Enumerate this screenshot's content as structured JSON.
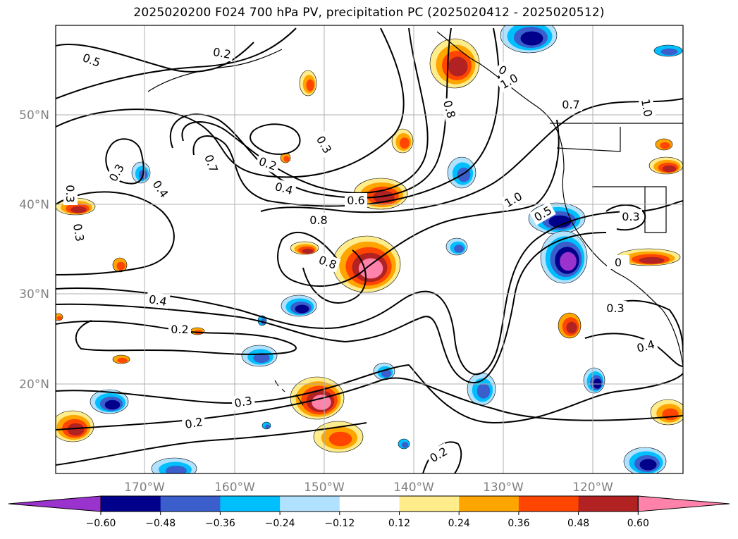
{
  "title": "2025020200 F024 700 hPa PV, precipitation PC (2025020412 - 2025020512)",
  "longitude_labels": [
    "170°W",
    "160°W",
    "150°W",
    "140°W",
    "130°W",
    "120°W"
  ],
  "latitude_labels": [
    "50°N",
    "40°N",
    "30°N",
    "20°N"
  ],
  "contour_labels": [
    {
      "text": "0.5",
      "rot": 20
    },
    {
      "text": "0.2",
      "rot": 10
    },
    {
      "text": "0.7",
      "rot": 70
    },
    {
      "text": "0.3",
      "rot": 60
    },
    {
      "text": "0.4",
      "rot": 55
    },
    {
      "text": "0.2",
      "rot": 20
    },
    {
      "text": "0.3",
      "rot": -60
    },
    {
      "text": "0.4",
      "rot": 15
    },
    {
      "text": "0.6",
      "rot": 0
    },
    {
      "text": "0.8",
      "rot": 0
    },
    {
      "text": "0.8",
      "rot": 20
    },
    {
      "text": "0.8",
      "rot": 75
    },
    {
      "text": "0.8",
      "rot": 30
    },
    {
      "text": "1.0",
      "rot": -30
    },
    {
      "text": "0.7",
      "rot": 0
    },
    {
      "text": "1.0",
      "rot": 80
    },
    {
      "text": "0.5",
      "rot": -30
    },
    {
      "text": "0.3",
      "rot": 0
    },
    {
      "text": "0.3",
      "rot": 90
    },
    {
      "text": "0.3",
      "rot": 80
    },
    {
      "text": "0.4",
      "rot": 10
    },
    {
      "text": "0.2",
      "rot": 0
    },
    {
      "text": "0.3",
      "rot": -10
    },
    {
      "text": "0.2",
      "rot": -10
    },
    {
      "text": "0.3",
      "rot": 0
    },
    {
      "text": "0.4",
      "rot": -15
    },
    {
      "text": "0.2",
      "rot": -30
    },
    {
      "text": "0",
      "rot": 0
    },
    {
      "text": "1.0",
      "rot": -30
    }
  ],
  "colorbar": {
    "ticks": [
      "−0.60",
      "−0.48",
      "−0.36",
      "−0.24",
      "−0.12",
      "0.12",
      "0.24",
      "0.36",
      "0.48",
      "0.60"
    ],
    "colors": [
      "#9a32cd",
      "#00008b",
      "#3a5fcd",
      "#00bfff",
      "#b0e2ff",
      "#ffffff",
      "#ffec8b",
      "#ffa500",
      "#ff4500",
      "#b22222",
      "#ff82ab"
    ]
  },
  "fill_colors": {
    "n60": "#9a32cd",
    "n48": "#00008b",
    "n36": "#3a5fcd",
    "n24": "#00bfff",
    "n12": "#b0e2ff",
    "p12": "#ffec8b",
    "p24": "#ffa500",
    "p36": "#ff4500",
    "p48": "#b22222",
    "p60": "#ff82ab"
  }
}
